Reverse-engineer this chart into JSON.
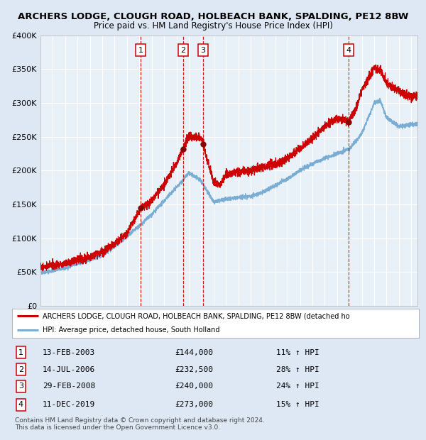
{
  "title1": "ARCHERS LODGE, CLOUGH ROAD, HOLBEACH BANK, SPALDING, PE12 8BW",
  "title2": "Price paid vs. HM Land Registry's House Price Index (HPI)",
  "bg_color": "#dde8f4",
  "plot_bg": "#e8f0f8",
  "grid_color": "#ffffff",
  "red_line_color": "#cc0000",
  "blue_line_color": "#7aadd4",
  "sale_marker_color": "#880000",
  "vline_color": "#cc0000",
  "transactions": [
    {
      "num": 1,
      "date_label": "13-FEB-2003",
      "price": 144000,
      "pct": "11%",
      "x_year": 2003.11
    },
    {
      "num": 2,
      "date_label": "14-JUL-2006",
      "price": 232500,
      "pct": "28%",
      "x_year": 2006.54
    },
    {
      "num": 3,
      "date_label": "29-FEB-2008",
      "price": 240000,
      "pct": "24%",
      "x_year": 2008.16
    },
    {
      "num": 4,
      "date_label": "11-DEC-2019",
      "price": 273000,
      "pct": "15%",
      "x_year": 2019.94
    }
  ],
  "legend_red": "ARCHERS LODGE, CLOUGH ROAD, HOLBEACH BANK, SPALDING, PE12 8BW (detached ho",
  "legend_blue": "HPI: Average price, detached house, South Holland",
  "footnote1": "Contains HM Land Registry data © Crown copyright and database right 2024.",
  "footnote2": "This data is licensed under the Open Government Licence v3.0.",
  "ylim": [
    0,
    400000
  ],
  "xlim_start": 1995.0,
  "xlim_end": 2025.5
}
